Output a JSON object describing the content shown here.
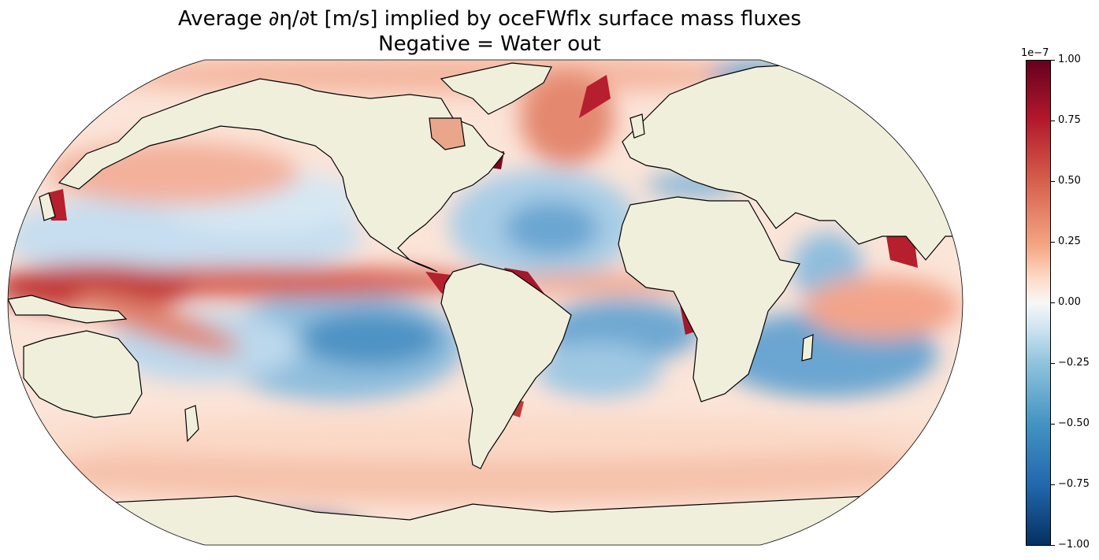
{
  "title": {
    "line1": "Average ∂η/∂t [m/s] implied by oceFWflx surface mass fluxes",
    "line2": "Negative = Water out"
  },
  "map": {
    "projection": "robinson",
    "land_color": "#efefdb",
    "coastline_color": "#000000",
    "field": "oceFWflx-implied ∂η/∂t"
  },
  "colorbar": {
    "colormap": "RdBu_r",
    "offset_label": "1e−7",
    "vmin": -1.0,
    "vmax": 1.0,
    "ticks": [
      "1.00",
      "0.75",
      "0.50",
      "0.25",
      "0.00",
      "−0.25",
      "−0.50",
      "−0.75",
      "−1.00"
    ],
    "tick_values": [
      1.0,
      0.75,
      0.5,
      0.25,
      0.0,
      -0.25,
      -0.5,
      -0.75,
      -1.0
    ]
  }
}
